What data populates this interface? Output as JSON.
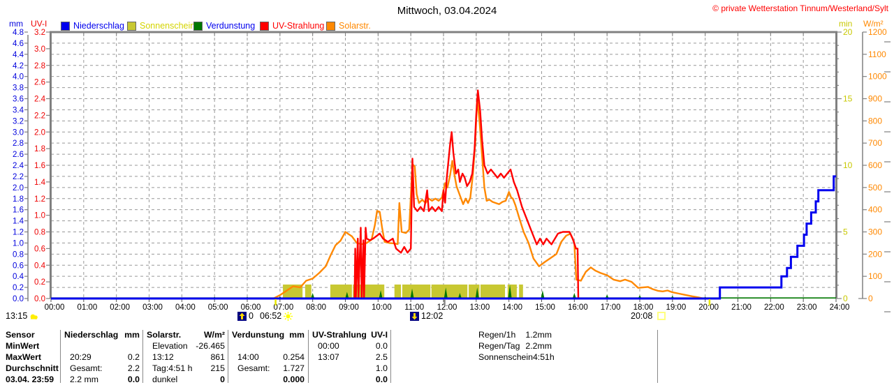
{
  "header": {
    "title": "Mittwoch, 03.04.2024",
    "copyright": "© private Wetterstation Tinnum/Westerland/Sylt",
    "axis_titles": {
      "left_outer": "mm",
      "left_inner": "UV-I",
      "right_inner": "min",
      "right_outer": "W/m²"
    }
  },
  "legend": [
    {
      "label": "Niederschlag",
      "swatch": "#0000ee",
      "text": "#0000ee"
    },
    {
      "label": "Sonnenschein",
      "swatch": "#c8c832",
      "text": "#d4d400"
    },
    {
      "label": "Verdunstung",
      "swatch": "#007800",
      "text": "#0000ee"
    },
    {
      "label": "UV-Strahlung",
      "swatch": "#ff0000",
      "text": "#ff0000"
    },
    {
      "label": "Solarstr.",
      "swatch": "#ff8800",
      "text": "#ff8800"
    }
  ],
  "markers": {
    "current_time": "13:15",
    "moon_value": "0",
    "sunrise": "06:52",
    "culmination": "12:02",
    "sunset": "20:08"
  },
  "chart_data": {
    "type": "line",
    "title": "Mittwoch, 03.04.2024",
    "x_unit": "hours",
    "x_range": [
      0,
      24
    ],
    "x_tick_labels": [
      "00:00",
      "01:00",
      "02:00",
      "03:00",
      "04:00",
      "05:00",
      "06:00",
      "07:00",
      "08:00",
      "09:00",
      "10:00",
      "11:00",
      "12:00",
      "13:00",
      "14:00",
      "15:00",
      "16:00",
      "17:00",
      "18:00",
      "19:00",
      "20:00",
      "21:00",
      "22:00",
      "23:00",
      "24:00"
    ],
    "grid": true,
    "axes": {
      "mm": {
        "label": "mm",
        "min": 0,
        "max": 4.8,
        "step": 0.2,
        "color": "#0000dd"
      },
      "uvi": {
        "label": "UV-I",
        "min": 0,
        "max": 3.2,
        "step": 0.2,
        "color": "#ee0000"
      },
      "min": {
        "label": "min",
        "min": 0,
        "max": 20,
        "step": 5,
        "color": "#c8c800"
      },
      "wm2": {
        "label": "W/m²",
        "min": 0,
        "max": 1200,
        "step": 100,
        "color": "#ff8800"
      }
    },
    "series": [
      {
        "name": "Niederschlag",
        "axis": "mm",
        "style": "step",
        "color": "#0000ee",
        "points": [
          [
            0,
            0
          ],
          [
            20.42,
            0
          ],
          [
            20.45,
            0.2
          ],
          [
            22.25,
            0.2
          ],
          [
            22.33,
            0.4
          ],
          [
            22.5,
            0.55
          ],
          [
            22.62,
            0.75
          ],
          [
            22.82,
            0.95
          ],
          [
            23.02,
            1.15
          ],
          [
            23.1,
            1.35
          ],
          [
            23.24,
            1.55
          ],
          [
            23.38,
            1.75
          ],
          [
            23.46,
            1.95
          ],
          [
            23.88,
            1.95
          ],
          [
            23.93,
            2.2
          ],
          [
            24,
            2.2
          ]
        ]
      },
      {
        "name": "Sonnenschein",
        "axis": "min",
        "style": "bars",
        "color": "#c8c832",
        "bar_value": 1.05,
        "segments": [
          [
            7.09,
            7.69
          ],
          [
            7.77,
            7.96
          ],
          [
            8.54,
            9.2
          ],
          [
            9.23,
            10.19
          ],
          [
            10.5,
            10.7
          ],
          [
            10.74,
            11.6
          ],
          [
            11.63,
            12.73
          ],
          [
            12.77,
            13.1
          ],
          [
            13.13,
            13.88
          ],
          [
            13.96,
            14.24
          ],
          [
            14.31,
            14.43
          ]
        ]
      },
      {
        "name": "Verdunstung",
        "axis": "mm",
        "style": "spikes",
        "color": "#007800",
        "points": [
          [
            1,
            0.02
          ],
          [
            2,
            0.02
          ],
          [
            3,
            0.02
          ],
          [
            4,
            0.02
          ],
          [
            5,
            0.03
          ],
          [
            6,
            0.03
          ],
          [
            7,
            0.04
          ],
          [
            8,
            0.1
          ],
          [
            9.05,
            0.12
          ],
          [
            10.08,
            0.15
          ],
          [
            11.04,
            0.18
          ],
          [
            12.07,
            0.2
          ],
          [
            12.5,
            0.1
          ],
          [
            13.03,
            0.2
          ],
          [
            14.03,
            0.25
          ],
          [
            15.03,
            0.15
          ],
          [
            16,
            0.1
          ],
          [
            17,
            0.07
          ],
          [
            18,
            0.06
          ],
          [
            19,
            0.05
          ],
          [
            20,
            0.03
          ],
          [
            21,
            0.02
          ],
          [
            22,
            0.02
          ],
          [
            23,
            0.02
          ]
        ]
      },
      {
        "name": "UV-Strahlung",
        "axis": "uvi",
        "style": "line",
        "color": "#ff0000",
        "points": [
          [
            9.28,
            0
          ],
          [
            9.3,
            0.6
          ],
          [
            9.32,
            0
          ],
          [
            9.38,
            0.72
          ],
          [
            9.4,
            0
          ],
          [
            9.47,
            0.85
          ],
          [
            9.5,
            0
          ],
          [
            9.55,
            0.7
          ],
          [
            9.57,
            0
          ],
          [
            9.62,
            0.85
          ],
          [
            9.65,
            0.72
          ],
          [
            9.75,
            0.7
          ],
          [
            9.85,
            0.72
          ],
          [
            9.95,
            0.75
          ],
          [
            10.05,
            0.78
          ],
          [
            10.15,
            0.72
          ],
          [
            10.3,
            0.68
          ],
          [
            10.45,
            0.72
          ],
          [
            10.55,
            0.6
          ],
          [
            10.7,
            0.55
          ],
          [
            10.8,
            0.62
          ],
          [
            10.9,
            0.55
          ],
          [
            11,
            0.6
          ],
          [
            11.05,
            1.68
          ],
          [
            11.1,
            1.1
          ],
          [
            11.2,
            1.05
          ],
          [
            11.3,
            1.1
          ],
          [
            11.4,
            1.05
          ],
          [
            11.5,
            1.3
          ],
          [
            11.55,
            1.05
          ],
          [
            11.65,
            1.1
          ],
          [
            11.75,
            1.05
          ],
          [
            11.85,
            1.1
          ],
          [
            11.95,
            1.05
          ],
          [
            12,
            1.3
          ],
          [
            12.05,
            1.15
          ],
          [
            12.1,
            1.45
          ],
          [
            12.2,
            1.85
          ],
          [
            12.25,
            2.0
          ],
          [
            12.3,
            1.75
          ],
          [
            12.38,
            1.5
          ],
          [
            12.45,
            1.55
          ],
          [
            12.5,
            1.4
          ],
          [
            12.58,
            1.5
          ],
          [
            12.65,
            1.45
          ],
          [
            12.72,
            1.35
          ],
          [
            12.8,
            1.4
          ],
          [
            12.88,
            1.5
          ],
          [
            12.95,
            1.8
          ],
          [
            13,
            2.2
          ],
          [
            13.05,
            2.5
          ],
          [
            13.12,
            2.25
          ],
          [
            13.18,
            1.9
          ],
          [
            13.25,
            1.6
          ],
          [
            13.35,
            1.5
          ],
          [
            13.45,
            1.55
          ],
          [
            13.55,
            1.5
          ],
          [
            13.65,
            1.45
          ],
          [
            13.75,
            1.5
          ],
          [
            13.85,
            1.45
          ],
          [
            13.95,
            1.5
          ],
          [
            14.05,
            1.55
          ],
          [
            14.15,
            1.4
          ],
          [
            14.25,
            1.3
          ],
          [
            14.4,
            1.1
          ],
          [
            14.55,
            0.95
          ],
          [
            14.7,
            0.8
          ],
          [
            14.85,
            0.65
          ],
          [
            14.95,
            0.72
          ],
          [
            15.05,
            0.65
          ],
          [
            15.15,
            0.72
          ],
          [
            15.3,
            0.65
          ],
          [
            15.5,
            0.78
          ],
          [
            15.65,
            0.8
          ],
          [
            15.85,
            0.8
          ],
          [
            15.95,
            0.72
          ],
          [
            16.05,
            0.6
          ],
          [
            16.1,
            0.6
          ],
          [
            16.12,
            0
          ]
        ]
      },
      {
        "name": "Solarstr.",
        "axis": "wm2",
        "style": "line",
        "color": "#ff8800",
        "points": [
          [
            6.8,
            0
          ],
          [
            7,
            15
          ],
          [
            7.2,
            35
          ],
          [
            7.4,
            55
          ],
          [
            7.62,
            50
          ],
          [
            7.8,
            80
          ],
          [
            8,
            90
          ],
          [
            8.2,
            115
          ],
          [
            8.4,
            145
          ],
          [
            8.55,
            195
          ],
          [
            8.7,
            240
          ],
          [
            8.85,
            260
          ],
          [
            9,
            300
          ],
          [
            9.1,
            290
          ],
          [
            9.2,
            280
          ],
          [
            9.35,
            250
          ],
          [
            9.5,
            245
          ],
          [
            9.65,
            250
          ],
          [
            9.8,
            265
          ],
          [
            9.9,
            330
          ],
          [
            9.97,
            395
          ],
          [
            10.05,
            390
          ],
          [
            10.12,
            320
          ],
          [
            10.2,
            255
          ],
          [
            10.35,
            250
          ],
          [
            10.5,
            248
          ],
          [
            10.6,
            245
          ],
          [
            10.65,
            430
          ],
          [
            10.72,
            300
          ],
          [
            10.85,
            295
          ],
          [
            10.95,
            310
          ],
          [
            11.05,
            605
          ],
          [
            11.12,
            595
          ],
          [
            11.18,
            470
          ],
          [
            11.25,
            430
          ],
          [
            11.35,
            445
          ],
          [
            11.45,
            430
          ],
          [
            11.55,
            450
          ],
          [
            11.65,
            440
          ],
          [
            11.75,
            450
          ],
          [
            11.85,
            440
          ],
          [
            11.95,
            455
          ],
          [
            12.05,
            520
          ],
          [
            12.12,
            500
          ],
          [
            12.2,
            555
          ],
          [
            12.27,
            620
          ],
          [
            12.33,
            560
          ],
          [
            12.4,
            505
          ],
          [
            12.5,
            465
          ],
          [
            12.6,
            425
          ],
          [
            12.68,
            450
          ],
          [
            12.75,
            430
          ],
          [
            12.82,
            455
          ],
          [
            12.9,
            560
          ],
          [
            12.97,
            700
          ],
          [
            13.03,
            900
          ],
          [
            13.1,
            800
          ],
          [
            13.17,
            660
          ],
          [
            13.25,
            500
          ],
          [
            13.32,
            440
          ],
          [
            13.4,
            445
          ],
          [
            13.5,
            435
          ],
          [
            13.6,
            430
          ],
          [
            13.7,
            425
          ],
          [
            13.8,
            435
          ],
          [
            13.9,
            440
          ],
          [
            14,
            480
          ],
          [
            14.07,
            455
          ],
          [
            14.12,
            450
          ],
          [
            14.2,
            420
          ],
          [
            14.3,
            370
          ],
          [
            14.45,
            300
          ],
          [
            14.6,
            250
          ],
          [
            14.75,
            180
          ],
          [
            14.92,
            145
          ],
          [
            15.1,
            165
          ],
          [
            15.25,
            180
          ],
          [
            15.45,
            200
          ],
          [
            15.6,
            255
          ],
          [
            15.75,
            283
          ],
          [
            15.88,
            292
          ],
          [
            16,
            250
          ],
          [
            16.06,
            85
          ],
          [
            16.2,
            80
          ],
          [
            16.35,
            120
          ],
          [
            16.5,
            140
          ],
          [
            16.65,
            125
          ],
          [
            16.8,
            115
          ],
          [
            17,
            105
          ],
          [
            17.2,
            85
          ],
          [
            17.4,
            78
          ],
          [
            17.55,
            85
          ],
          [
            17.75,
            75
          ],
          [
            17.95,
            48
          ],
          [
            18.1,
            50
          ],
          [
            18.25,
            52
          ],
          [
            18.4,
            42
          ],
          [
            18.55,
            35
          ],
          [
            18.7,
            32
          ],
          [
            18.85,
            36
          ],
          [
            19,
            28
          ],
          [
            19.2,
            22
          ],
          [
            19.4,
            16
          ],
          [
            19.6,
            10
          ],
          [
            19.8,
            5
          ],
          [
            19.95,
            0
          ]
        ]
      }
    ],
    "sun_markers": {
      "sunrise_hour": 6.867,
      "culmination_hour": 12.033,
      "sunset_hour": 20.133
    }
  },
  "summary_table": {
    "row_labels": [
      "Sensor",
      "MinWert",
      "MaxWert",
      "Durchschnitt",
      "03.04. 23:59"
    ],
    "columns": [
      {
        "title": "Niederschlag",
        "unit": "mm",
        "rows": [
          [
            "",
            ""
          ],
          [
            "20:29",
            "0.2"
          ],
          [
            "Gesamt:",
            "2.2"
          ],
          [
            "2.2 mm",
            "0.0"
          ]
        ]
      },
      {
        "title": "Solarstr.",
        "unit": "W/m²",
        "rows": [
          [
            "Elevation",
            "-26.465"
          ],
          [
            "13:12",
            "861"
          ],
          [
            "Tag:4:51 h",
            "215"
          ],
          [
            "dunkel",
            "0"
          ]
        ]
      },
      {
        "title": "Verdunstung",
        "unit": "mm",
        "rows": [
          [
            "",
            ""
          ],
          [
            "14:00",
            "0.254"
          ],
          [
            "Gesamt:",
            "1.727"
          ],
          [
            "",
            "0.000"
          ]
        ]
      },
      {
        "title": "UV-Strahlung",
        "unit": "UV-I",
        "rows": [
          [
            "00:00",
            "0.0"
          ],
          [
            "13:07",
            "2.5"
          ],
          [
            "",
            "1.0"
          ],
          [
            "",
            "0.0"
          ]
        ]
      }
    ],
    "extras": [
      [
        "Regen/1h",
        "1.2mm"
      ],
      [
        "Regen/Tag",
        "2.2mm"
      ],
      [
        "Sonnenschein",
        "4:51h"
      ]
    ]
  }
}
